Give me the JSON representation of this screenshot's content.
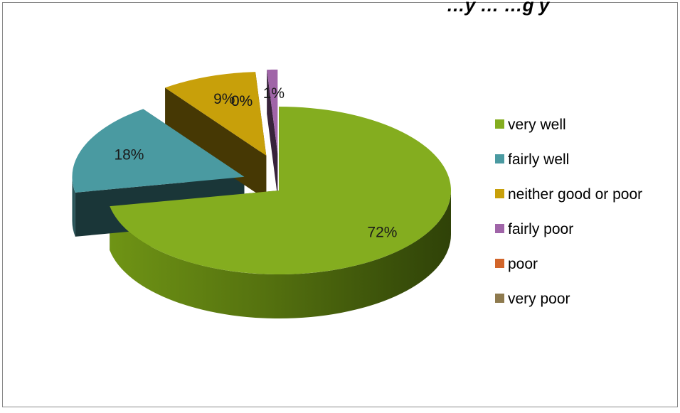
{
  "chart_data": {
    "type": "pie",
    "title": "…y … …g y",
    "legend_position": "right",
    "categories": [
      "very well",
      "fairly well",
      "neither good or poor",
      "fairly poor",
      "poor",
      "very poor"
    ],
    "values": [
      72,
      18,
      9,
      1,
      0,
      0
    ],
    "labels": [
      "72%",
      "18%",
      "9%",
      "1%",
      "0%",
      "0%"
    ],
    "colors": [
      "#84ad1f",
      "#4a9aa1",
      "#c8a00a",
      "#a065a8",
      "#d2652a",
      "#8e7a4e"
    ]
  }
}
